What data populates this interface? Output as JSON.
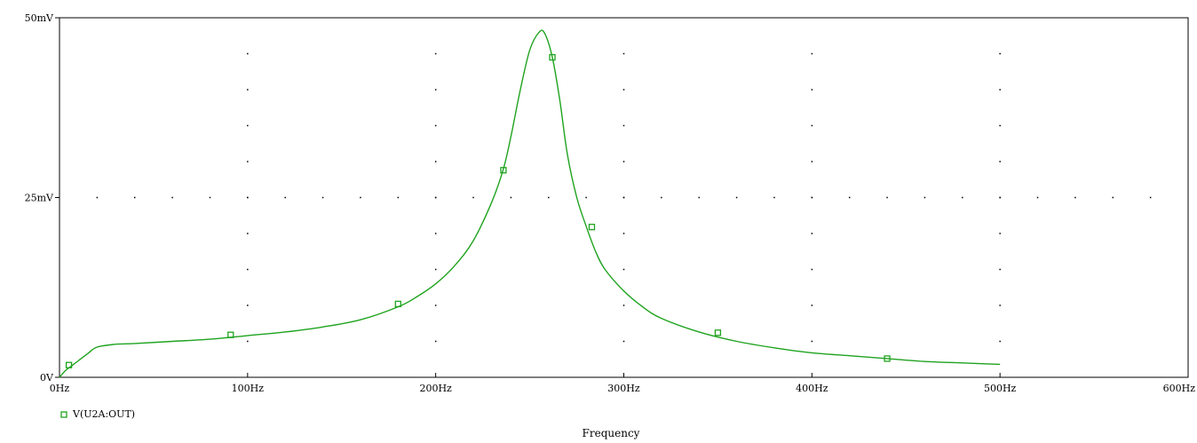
{
  "chart_data": {
    "type": "line",
    "xlabel": "Frequency",
    "xlim": [
      0,
      600
    ],
    "ylim": [
      0,
      50
    ],
    "x_ticks": [
      {
        "value": 0,
        "label": "0Hz"
      },
      {
        "value": 100,
        "label": "100Hz"
      },
      {
        "value": 200,
        "label": "200Hz"
      },
      {
        "value": 300,
        "label": "300Hz"
      },
      {
        "value": 400,
        "label": "400Hz"
      },
      {
        "value": 500,
        "label": "500Hz"
      },
      {
        "value": 600,
        "label": "600Hz"
      }
    ],
    "y_ticks": [
      {
        "value": 0,
        "label": "0V"
      },
      {
        "value": 25,
        "label": "25mV"
      },
      {
        "value": 50,
        "label": "50mV"
      }
    ],
    "grid": "dotted",
    "legend_position": "bottom-left",
    "series": [
      {
        "name": "V(U2A:OUT)",
        "color": "#1fa31f",
        "marker": "square",
        "x": [
          0,
          3,
          6,
          10,
          15,
          20,
          30,
          40,
          60,
          80,
          100,
          120,
          140,
          160,
          180,
          190,
          200,
          210,
          220,
          230,
          236,
          240,
          245,
          250,
          255,
          258,
          262,
          266,
          270,
          275,
          280,
          285,
          290,
          300,
          310,
          320,
          340,
          360,
          380,
          400,
          420,
          440,
          460,
          480,
          500
        ],
        "values": [
          0,
          0.9,
          1.5,
          2.3,
          3.3,
          4.2,
          4.6,
          4.7,
          5.0,
          5.3,
          5.8,
          6.3,
          7.0,
          8.0,
          9.8,
          11.2,
          13.0,
          15.5,
          19.0,
          24.5,
          29.0,
          33.5,
          40.0,
          45.5,
          48.0,
          47.8,
          44.5,
          38.5,
          31.0,
          25.0,
          21.0,
          17.5,
          15.0,
          12.0,
          9.8,
          8.2,
          6.3,
          5.0,
          4.1,
          3.4,
          3.0,
          2.6,
          2.2,
          2.0,
          1.8
        ],
        "markers": [
          {
            "x": 5,
            "y": 1.7
          },
          {
            "x": 91,
            "y": 5.9
          },
          {
            "x": 180,
            "y": 10.2
          },
          {
            "x": 236,
            "y": 28.8
          },
          {
            "x": 262,
            "y": 44.5
          },
          {
            "x": 283,
            "y": 20.9
          },
          {
            "x": 350,
            "y": 6.2
          },
          {
            "x": 440,
            "y": 2.6
          }
        ]
      }
    ]
  }
}
